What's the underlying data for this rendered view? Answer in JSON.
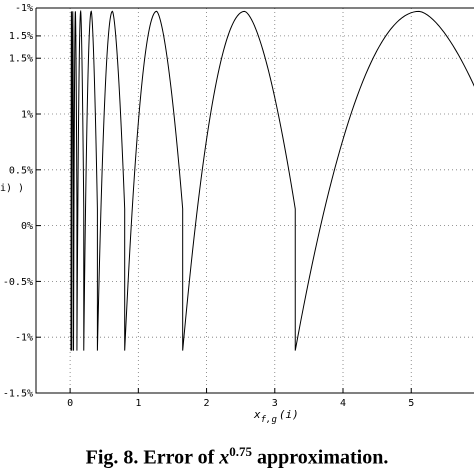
{
  "caption": {
    "prefix": "Fig. 8. Error of ",
    "base": "x",
    "exponent": "0.75",
    "suffix": " approximation."
  },
  "chart_data": {
    "type": "line",
    "title": "",
    "xlabel": "x",
    "xlabel_sub": "f,g",
    "xlabel_arg": "(i)",
    "ylabel_visible": "i) )",
    "xlim": [
      -0.5,
      5.92
    ],
    "ylim": [
      -1.5,
      1.95
    ],
    "grid": true,
    "x_ticks": [
      0,
      1,
      2,
      3,
      4,
      5
    ],
    "x_tick_labels": [
      "0",
      "1",
      "2",
      "3",
      "4",
      "5"
    ],
    "y_ticks": [
      1.5,
      1,
      0.5,
      0,
      -0.5,
      -1,
      -1.5
    ],
    "y_tick_labels": [
      "1.5%",
      "1%",
      "0.5%",
      "0%",
      "-0.5%",
      "-1%",
      "-1.5%"
    ],
    "y_tick_labels_partial_top": [
      "-1%",
      "1.5%"
    ],
    "series": [
      {
        "color": "#000000",
        "breakpoints": [
          0.0125,
          0.025,
          0.05,
          0.1,
          0.2,
          0.4,
          0.8,
          1.65,
          3.3,
          6.6
        ],
        "segments": [
          {
            "x_start": 0.0125,
            "x_end": 0.025,
            "y_start": -1.12,
            "y_end": 0.15,
            "y_max": 1.92
          },
          {
            "x_start": 0.025,
            "x_end": 0.05,
            "y_start": -1.12,
            "y_end": 0.15,
            "y_max": 1.92
          },
          {
            "x_start": 0.05,
            "x_end": 0.1,
            "y_start": -1.12,
            "y_end": 0.15,
            "y_max": 1.92
          },
          {
            "x_start": 0.1,
            "x_end": 0.2,
            "y_start": -1.12,
            "y_end": 0.15,
            "y_max": 1.92
          },
          {
            "x_start": 0.2,
            "x_end": 0.4,
            "y_start": -1.12,
            "y_end": 0.15,
            "y_max": 1.92
          },
          {
            "x_start": 0.4,
            "x_end": 0.8,
            "y_start": -1.12,
            "y_end": 0.15,
            "y_max": 1.92
          },
          {
            "x_start": 0.8,
            "x_end": 1.65,
            "y_start": -1.12,
            "y_end": 0.15,
            "y_max": 1.92
          },
          {
            "x_start": 1.65,
            "x_end": 3.3,
            "y_start": -1.12,
            "y_end": 0.15,
            "y_max": 1.92
          },
          {
            "x_start": 3.3,
            "x_end": 6.6,
            "y_start": -1.12,
            "y_end": 0.15,
            "y_max": 1.92
          }
        ]
      }
    ]
  }
}
